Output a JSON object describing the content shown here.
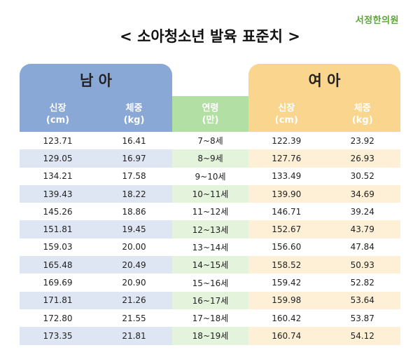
{
  "brand": "서정한의원",
  "title": "< 소아청소년 발육 표준치 >",
  "male": {
    "heading": "남 아",
    "height_label": "신장",
    "height_unit": "(cm)",
    "weight_label": "체중",
    "weight_unit": "(kg)"
  },
  "age": {
    "label": "연령",
    "unit": "(만)"
  },
  "female": {
    "heading": "여 아",
    "height_label": "신장",
    "height_unit": "(cm)",
    "weight_label": "체중",
    "weight_unit": "(kg)"
  },
  "rows": [
    {
      "m_height": "123.71",
      "m_weight": "16.41",
      "age": "7~8세",
      "f_height": "122.39",
      "f_weight": "23.92"
    },
    {
      "m_height": "129.05",
      "m_weight": "16.97",
      "age": "8~9세",
      "f_height": "127.76",
      "f_weight": "26.93"
    },
    {
      "m_height": "134.21",
      "m_weight": "17.58",
      "age": "9~10세",
      "f_height": "133.49",
      "f_weight": "30.52"
    },
    {
      "m_height": "139.43",
      "m_weight": "18.22",
      "age": "10~11세",
      "f_height": "139.90",
      "f_weight": "34.69"
    },
    {
      "m_height": "145.26",
      "m_weight": "18.86",
      "age": "11~12세",
      "f_height": "146.71",
      "f_weight": "39.24"
    },
    {
      "m_height": "151.81",
      "m_weight": "19.45",
      "age": "12~13세",
      "f_height": "152.67",
      "f_weight": "43.79"
    },
    {
      "m_height": "159.03",
      "m_weight": "20.00",
      "age": "13~14세",
      "f_height": "156.60",
      "f_weight": "47.84"
    },
    {
      "m_height": "165.48",
      "m_weight": "20.49",
      "age": "14~15세",
      "f_height": "158.52",
      "f_weight": "50.93"
    },
    {
      "m_height": "169.69",
      "m_weight": "20.90",
      "age": "15~16세",
      "f_height": "159.42",
      "f_weight": "52.82"
    },
    {
      "m_height": "171.81",
      "m_weight": "21.26",
      "age": "16~17세",
      "f_height": "159.98",
      "f_weight": "53.64"
    },
    {
      "m_height": "172.80",
      "m_weight": "21.55",
      "age": "17~18세",
      "f_height": "160.42",
      "f_weight": "53.87"
    },
    {
      "m_height": "173.35",
      "m_weight": "21.81",
      "age": "18~19세",
      "f_height": "160.74",
      "f_weight": "54.12"
    }
  ],
  "colors": {
    "male_header": "#8aa8d6",
    "age_header": "#b2e0a4",
    "female_header": "#f9d58e",
    "male_row_alt": "#dde6f2",
    "age_row_alt": "#e3f3dc",
    "female_row_alt": "#fdf0d6",
    "brand_green": "#5aa832"
  }
}
